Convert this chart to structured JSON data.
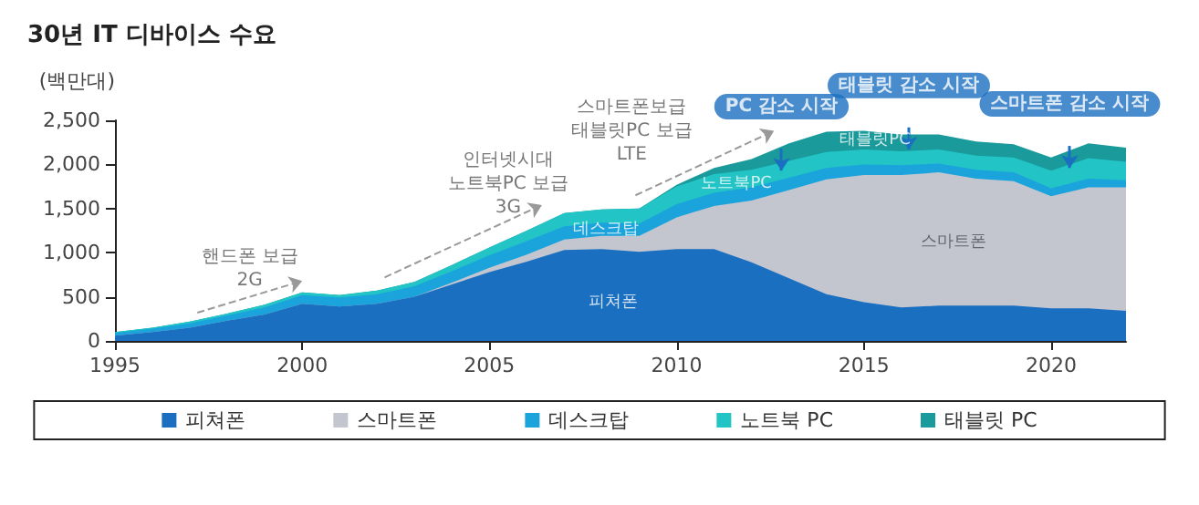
{
  "chart_data": {
    "type": "area",
    "title": "30년 IT 디바이스 수요",
    "ylabel": "(백만대)",
    "stacked": true,
    "grid": false,
    "legend": "bottom",
    "xlim": [
      1995,
      2022
    ],
    "xticks": [
      1995,
      2000,
      2005,
      2010,
      2015,
      2020
    ],
    "ylim": [
      0,
      2500
    ],
    "yticks": [
      0,
      500,
      {
        "value": 1000,
        "label": "1,000"
      },
      {
        "value": 1500,
        "label": "1,500"
      },
      {
        "value": 2000,
        "label": "2,000"
      },
      {
        "value": 2500,
        "label": "2,500"
      }
    ],
    "x": [
      1995,
      1996,
      1997,
      1998,
      1999,
      2000,
      2001,
      2002,
      2003,
      2004,
      2005,
      2006,
      2007,
      2008,
      2009,
      2010,
      2011,
      2012,
      2013,
      2014,
      2015,
      2016,
      2017,
      2018,
      2019,
      2020,
      2021,
      2022
    ],
    "series": [
      {
        "name": "피쳐폰",
        "color": "#1a6fc0",
        "values": [
          60,
          100,
          150,
          230,
          300,
          420,
          390,
          420,
          500,
          640,
          780,
          900,
          1030,
          1040,
          1010,
          1040,
          1040,
          890,
          710,
          530,
          440,
          380,
          400,
          400,
          400,
          370,
          370,
          340
        ]
      },
      {
        "name": "스마트폰",
        "color": "#c4c6cf",
        "values": [
          0,
          0,
          0,
          0,
          0,
          0,
          0,
          0,
          0,
          20,
          50,
          80,
          120,
          150,
          180,
          360,
          490,
          700,
          1000,
          1300,
          1440,
          1500,
          1510,
          1440,
          1410,
          1270,
          1370,
          1400
        ]
      },
      {
        "name": "데스크탑",
        "color": "#1ba3dc",
        "values": [
          30,
          40,
          50,
          60,
          80,
          100,
          100,
          110,
          120,
          130,
          140,
          150,
          150,
          150,
          140,
          150,
          150,
          150,
          140,
          130,
          120,
          110,
          100,
          100,
          100,
          90,
          100,
          80
        ]
      },
      {
        "name": "노트북 PC",
        "color": "#22c4c6",
        "values": [
          10,
          10,
          20,
          20,
          30,
          30,
          30,
          40,
          50,
          70,
          90,
          120,
          150,
          150,
          170,
          200,
          210,
          200,
          190,
          180,
          170,
          160,
          160,
          160,
          170,
          200,
          230,
          210
        ]
      },
      {
        "name": "태블릿 PC",
        "color": "#1a9a9a",
        "values": [
          0,
          0,
          0,
          0,
          0,
          0,
          0,
          0,
          0,
          0,
          0,
          0,
          0,
          0,
          0,
          20,
          70,
          120,
          200,
          230,
          210,
          190,
          170,
          160,
          150,
          150,
          170,
          160
        ]
      }
    ],
    "annotations": [
      "핸드폰 보급\n2G",
      "인터넷시대\n노트북PC 보급\n3G",
      "스마트폰보급\n태블릿PC 보급\nLTE",
      "PC 감소 시작",
      "태블릿 감소 시작",
      "스마트폰 감소 시작",
      "피쳐폰",
      "스마트폰",
      "데스크탑",
      "노트북PC",
      "태블릿PC"
    ]
  }
}
